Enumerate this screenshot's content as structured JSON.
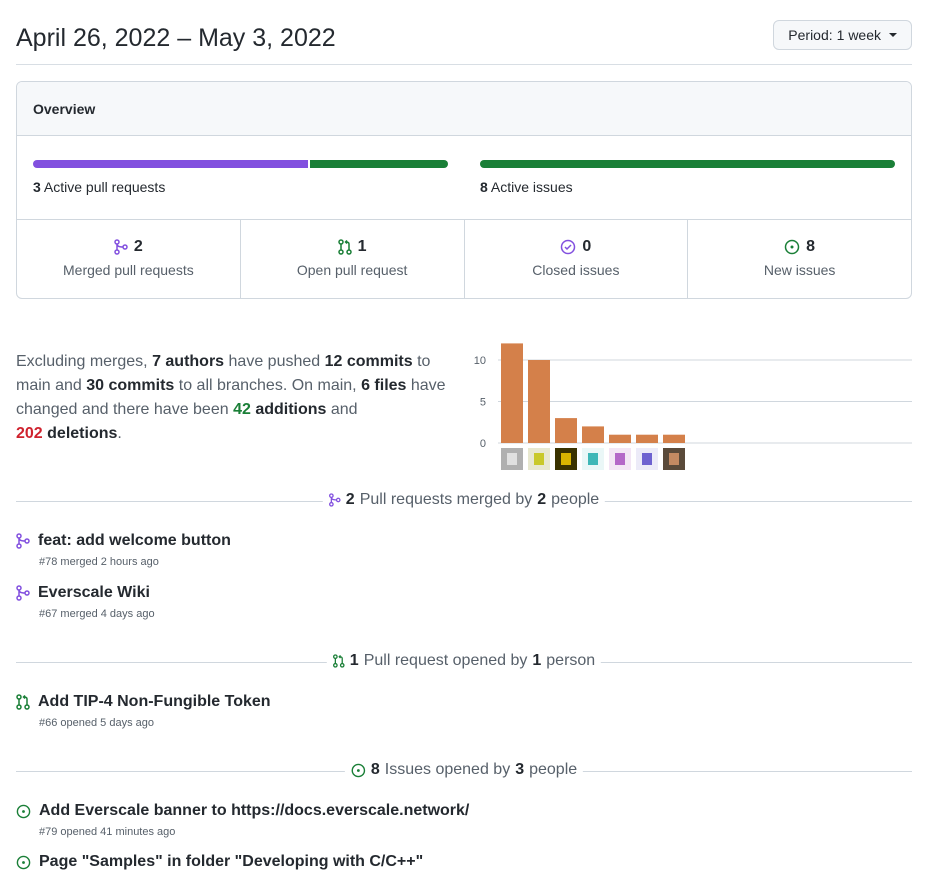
{
  "header": {
    "date_range": "April 26, 2022 – May 3, 2022",
    "period_label": "Period:",
    "period_value": "1 week"
  },
  "overview": {
    "title": "Overview",
    "pr_bar": {
      "merged_fraction": 0.667,
      "open_fraction": 0.333,
      "count": "3",
      "label": "Active pull requests"
    },
    "issue_bar": {
      "count": "8",
      "label": "Active issues"
    },
    "stats": [
      {
        "icon": "git-merge-icon",
        "value": "2",
        "label": "Merged pull requests"
      },
      {
        "icon": "git-pull-request-icon",
        "value": "1",
        "label": "Open pull request"
      },
      {
        "icon": "issue-closed-icon",
        "value": "0",
        "label": "Closed issues"
      },
      {
        "icon": "issue-opened-icon",
        "value": "8",
        "label": "New issues"
      }
    ],
    "colors": {
      "merged": "#8250df",
      "open": "#1a7f37",
      "issues": "#1a7f37"
    }
  },
  "summary": {
    "t1": "Excluding merges, ",
    "authors": "7 authors",
    "t2": " have pushed ",
    "commits_main": "12 commits",
    "t3": " to main and ",
    "commits_all": "30 commits",
    "t4": " to all branches. On main, ",
    "files": "6 files",
    "t5": " have changed and there have been ",
    "additions_num": "42",
    "additions_word": " additions",
    "t6": " and ",
    "deletions_num": "202",
    "deletions_word": " deletions",
    "t7": "."
  },
  "chart_data": {
    "type": "bar",
    "categories": [
      "author-1",
      "author-2",
      "author-3",
      "author-4",
      "author-5",
      "author-6",
      "author-7"
    ],
    "values": [
      12,
      10,
      3,
      2,
      1,
      1,
      1
    ],
    "yticks": [
      "0",
      "5",
      "10"
    ],
    "ylim": [
      0,
      12
    ],
    "bar_color": "#d4804a"
  },
  "sections": {
    "merged": {
      "count": "2",
      "text": " Pull requests merged by ",
      "people": "2",
      "suffix": " people"
    },
    "opened_pr": {
      "count": "1",
      "text": " Pull request opened by ",
      "people": "1",
      "suffix": " person"
    },
    "issues": {
      "count": "8",
      "text": " Issues opened by ",
      "people": "3",
      "suffix": " people"
    }
  },
  "merged_prs": [
    {
      "title": "feat: add welcome button",
      "meta": "#78 merged 2 hours ago"
    },
    {
      "title": "Everscale Wiki",
      "meta": "#67 merged 4 days ago"
    }
  ],
  "opened_prs": [
    {
      "title": "Add TIP-4 Non-Fungible Token",
      "meta": "#66 opened 5 days ago"
    }
  ],
  "issues": [
    {
      "title": "Add Everscale banner to https://docs.everscale.network/",
      "meta": "#79 opened 41 minutes ago"
    },
    {
      "title": "Page \"Samples\" in folder \"Developing with C/C++\"",
      "meta": ""
    }
  ]
}
